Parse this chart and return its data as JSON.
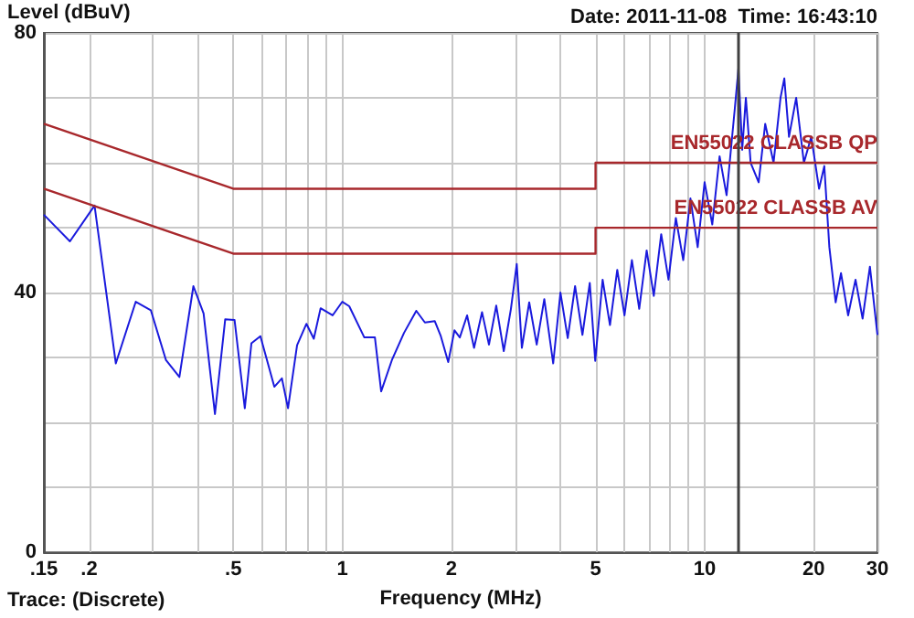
{
  "chart_data": {
    "type": "line",
    "ylabel": "Level (dBuV)",
    "xlabel": "Frequency (MHz)",
    "annotations": [
      "Date: 2011-11-08  Time: 16:43:10",
      "Trace: (Discrete)"
    ],
    "log": "x",
    "grid": true,
    "legend": false,
    "marker": "none",
    "line_style": "solid",
    "xlim": [
      0.15,
      30
    ],
    "ylim": [
      0,
      80
    ],
    "xticks": [
      {
        "value": 0.15,
        "label": ".15"
      },
      {
        "value": 0.2,
        "label": ".2"
      },
      {
        "value": 0.3,
        "label": null
      },
      {
        "value": 0.4,
        "label": null
      },
      {
        "value": 0.5,
        "label": ".5"
      },
      {
        "value": 0.6,
        "label": null
      },
      {
        "value": 0.7,
        "label": null
      },
      {
        "value": 0.8,
        "label": null
      },
      {
        "value": 0.9,
        "label": null
      },
      1,
      2,
      {
        "value": 3,
        "label": null
      },
      {
        "value": 4,
        "label": null
      },
      5,
      {
        "value": 6,
        "label": null
      },
      {
        "value": 7,
        "label": null
      },
      {
        "value": 8,
        "label": null
      },
      {
        "value": 9,
        "label": null
      },
      10,
      20,
      30
    ],
    "yticks": [
      0,
      {
        "value": 10,
        "label": null
      },
      {
        "value": 20,
        "label": null
      },
      {
        "value": 30,
        "label": null
      },
      40,
      {
        "value": 50,
        "label": null
      },
      {
        "value": 60,
        "label": null
      },
      {
        "value": 70,
        "label": null
      },
      80
    ],
    "ref_lines": [
      {
        "axis": "x",
        "value": 12.4,
        "label": null,
        "color": "#404040"
      }
    ],
    "series": [
      {
        "color": "#1a1add",
        "x": [
          0.15,
          0.177,
          0.207,
          0.237,
          0.269,
          0.296,
          0.326,
          0.355,
          0.388,
          0.414,
          0.445,
          0.475,
          0.504,
          0.538,
          0.561,
          0.594,
          0.649,
          0.681,
          0.708,
          0.75,
          0.796,
          0.834,
          0.871,
          0.94,
          1.0,
          1.045,
          1.15,
          1.23,
          1.28,
          1.37,
          1.48,
          1.6,
          1.69,
          1.8,
          1.87,
          1.96,
          2.04,
          2.11,
          2.21,
          2.31,
          2.43,
          2.54,
          2.66,
          2.79,
          2.92,
          3.03,
          3.13,
          3.28,
          3.44,
          3.61,
          3.82,
          4.0,
          4.19,
          4.39,
          4.6,
          4.82,
          4.99,
          5.23,
          5.48,
          5.74,
          6.01,
          6.3,
          6.6,
          6.92,
          7.24,
          7.59,
          7.95,
          8.33,
          8.73,
          9.14,
          9.57,
          10.0,
          10.5,
          11.0,
          11.5,
          12.1,
          12.4,
          12.7,
          13.0,
          13.4,
          14.1,
          14.7,
          15.5,
          16.2,
          16.6,
          17.1,
          17.9,
          18.8,
          19.7,
          20.7,
          21.4,
          22.1,
          23.0,
          23.8,
          24.9,
          26.1,
          27.3,
          28.6,
          30
        ],
        "values": [
          52,
          47.9,
          53.4,
          29.1,
          38.6,
          37.3,
          29.6,
          27,
          41,
          36.8,
          21.3,
          35.9,
          35.8,
          22.2,
          32.2,
          33.3,
          25.5,
          26.8,
          22.2,
          31.9,
          35.2,
          32.9,
          37.6,
          36.5,
          38.6,
          37.9,
          33.1,
          33.1,
          24.8,
          29.6,
          33.8,
          37.2,
          35.4,
          35.6,
          33.3,
          29.3,
          34.2,
          33.1,
          36.5,
          31.5,
          37,
          32,
          38,
          31,
          37.5,
          44.4,
          31.5,
          38.5,
          32,
          39,
          29.1,
          40,
          33,
          41,
          33.5,
          41.5,
          29.5,
          42,
          35,
          43.5,
          36.5,
          45,
          37.5,
          46.5,
          39.5,
          49,
          42,
          51.5,
          45,
          54.5,
          47,
          57,
          50.5,
          61,
          55,
          68,
          74.5,
          62,
          70,
          60,
          57,
          66,
          60,
          70,
          73,
          64,
          70,
          60,
          64,
          56,
          59.5,
          47,
          38.5,
          43,
          36.5,
          42,
          36,
          44,
          33.5
        ]
      },
      {
        "name": "EN55022 CLASSB QP",
        "color": "#a8282c",
        "x": [
          0.15,
          0.5,
          5,
          5,
          30
        ],
        "values": [
          66,
          56,
          56,
          60,
          60
        ]
      },
      {
        "name": "EN55022 CLASSB AV",
        "color": "#a8282c",
        "x": [
          0.15,
          0.5,
          5,
          5,
          30
        ],
        "values": [
          56,
          46,
          46,
          50,
          50
        ]
      }
    ]
  }
}
